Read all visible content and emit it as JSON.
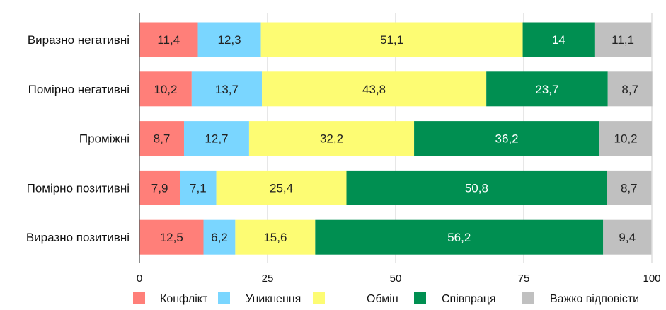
{
  "chart_data": {
    "type": "bar",
    "orientation": "horizontal",
    "stacked": true,
    "categories": [
      "Виразно негативні",
      "Помірно негативні",
      "Проміжні",
      "Помірно позитивні",
      "Виразно позитивні"
    ],
    "series": [
      {
        "name": "Конфлікт",
        "color": "#ff7f79",
        "label_color": "#222222",
        "values": [
          11.4,
          10.2,
          8.7,
          7.9,
          12.5
        ],
        "labels": [
          "11,4",
          "10,2",
          "8,7",
          "7,9",
          "12,5"
        ]
      },
      {
        "name": "Уникнення",
        "color": "#7ad6ff",
        "label_color": "#222222",
        "values": [
          12.3,
          13.7,
          12.7,
          7.1,
          6.2
        ],
        "labels": [
          "12,3",
          "13,7",
          "12,7",
          "7,1",
          "6,2"
        ]
      },
      {
        "name": "Обмін",
        "color": "#fdfc73",
        "label_color": "#222222",
        "values": [
          51.1,
          43.8,
          32.2,
          25.4,
          15.6
        ],
        "labels": [
          "51,1",
          "43,8",
          "32,2",
          "25,4",
          "15,6"
        ]
      },
      {
        "name": "Співпраця",
        "color": "#008f51",
        "label_color": "#ffffff",
        "values": [
          14,
          23.7,
          36.2,
          50.8,
          56.2
        ],
        "labels": [
          "14",
          "23,7",
          "36,2",
          "50,8",
          "56,2"
        ]
      },
      {
        "name": "Важко відповісти",
        "color": "#c0c0c0",
        "label_color": "#222222",
        "values": [
          11.1,
          8.7,
          10.2,
          8.7,
          9.4
        ],
        "labels": [
          "11,1",
          "8,7",
          "10,2",
          "8,7",
          "9,4"
        ]
      }
    ],
    "xlim": [
      0,
      100
    ],
    "xticks": [
      "0",
      "25",
      "50",
      "75",
      "100"
    ],
    "xtick_values": [
      0,
      25,
      50,
      75,
      100
    ],
    "grid": true,
    "legend_position": "bottom"
  }
}
